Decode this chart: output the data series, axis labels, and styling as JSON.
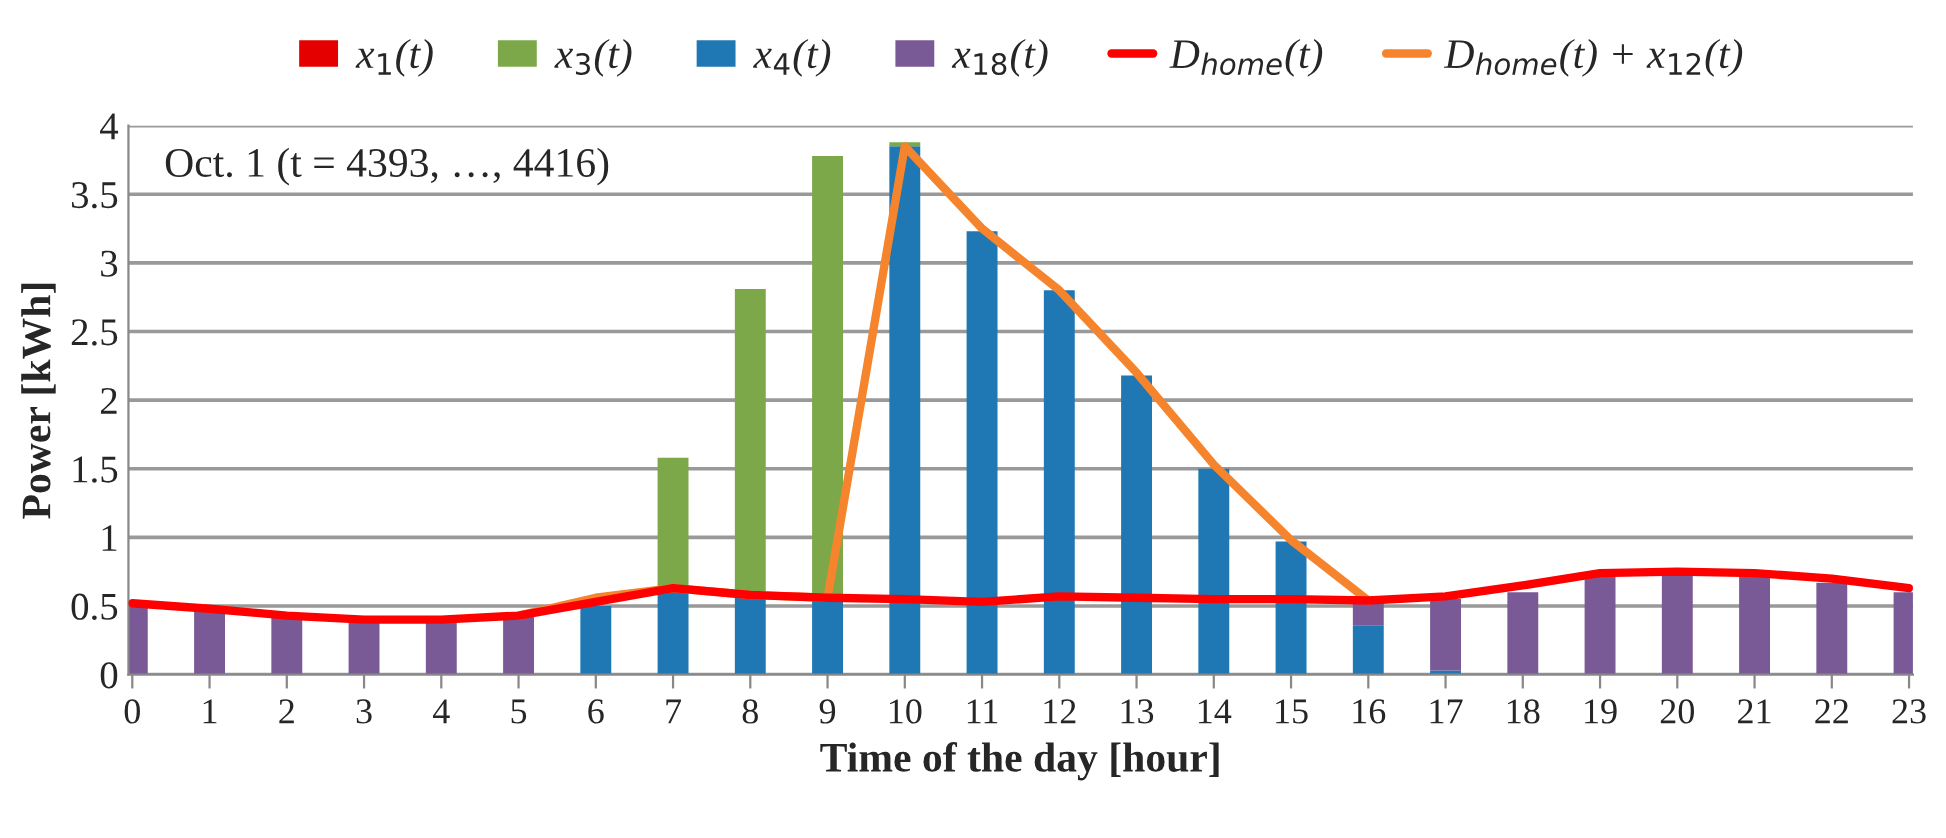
{
  "chart_data": {
    "type": "bar",
    "stacked": true,
    "xlabel": "Time of the day [hour]",
    "ylabel": "Power [kWh]",
    "annotations": [
      "Oct. 1 (t = 4393, …, 4416)"
    ],
    "categories": [
      "0",
      "1",
      "2",
      "3",
      "4",
      "5",
      "6",
      "7",
      "8",
      "9",
      "10",
      "11",
      "12",
      "13",
      "14",
      "15",
      "16",
      "17",
      "18",
      "19",
      "20",
      "21",
      "22",
      "23"
    ],
    "series": [
      {
        "name": "x$_{1}$(t)",
        "color": "#e50000",
        "values": [
          0,
          0,
          0,
          0,
          0,
          0,
          0,
          0,
          0,
          0,
          0,
          0,
          0,
          0,
          0,
          0,
          0,
          0,
          0,
          0,
          0,
          0,
          0,
          0
        ]
      },
      {
        "name": "x$_{4}$(t)",
        "color": "#1f77b4",
        "values": [
          0,
          0,
          0,
          0,
          0,
          0,
          0.5,
          0.62,
          0.57,
          0.55,
          3.85,
          3.23,
          2.8,
          2.18,
          1.5,
          0.97,
          0.36,
          0.03,
          0,
          0,
          0,
          0,
          0,
          0
        ]
      },
      {
        "name": "x$_{18}$(t)",
        "color": "#7a5a96",
        "values": [
          0.5,
          0.47,
          0.42,
          0.38,
          0.38,
          0.42,
          0,
          0,
          0,
          0,
          0,
          0,
          0,
          0,
          0,
          0,
          0.18,
          0.52,
          0.6,
          0.72,
          0.73,
          0.72,
          0.67,
          0.6
        ]
      },
      {
        "name": "x$_{3}$(t)",
        "color": "#7ca84a",
        "values": [
          0,
          0,
          0,
          0,
          0,
          0,
          0,
          0.96,
          2.24,
          3.23,
          0.03,
          0,
          0,
          0,
          0,
          0,
          0,
          0,
          0,
          0,
          0,
          0,
          0,
          0
        ]
      },
      {
        "name": "D$_{home}$(t) + x$_{12}$(t)",
        "type": "line",
        "color": "#f5842c",
        "values": [
          null,
          null,
          null,
          null,
          null,
          0.43,
          0.56,
          0.63,
          0.58,
          0.56,
          3.85,
          3.25,
          2.8,
          2.2,
          1.53,
          0.98,
          0.54,
          null,
          null,
          null,
          null,
          null,
          null,
          null
        ]
      },
      {
        "name": "D$_{home}$(t)",
        "type": "line",
        "color": "#ff0000",
        "values": [
          0.52,
          0.48,
          0.43,
          0.4,
          0.4,
          0.43,
          0.53,
          0.63,
          0.58,
          0.56,
          0.55,
          0.53,
          0.57,
          0.56,
          0.55,
          0.55,
          0.54,
          0.57,
          0.65,
          0.74,
          0.75,
          0.74,
          0.7,
          0.63
        ]
      }
    ],
    "ylim": [
      0,
      4
    ],
    "yticks": [
      0,
      0.5,
      1,
      1.5,
      2,
      2.5,
      3,
      3.5,
      4
    ],
    "grid": "y",
    "legend": "top"
  }
}
